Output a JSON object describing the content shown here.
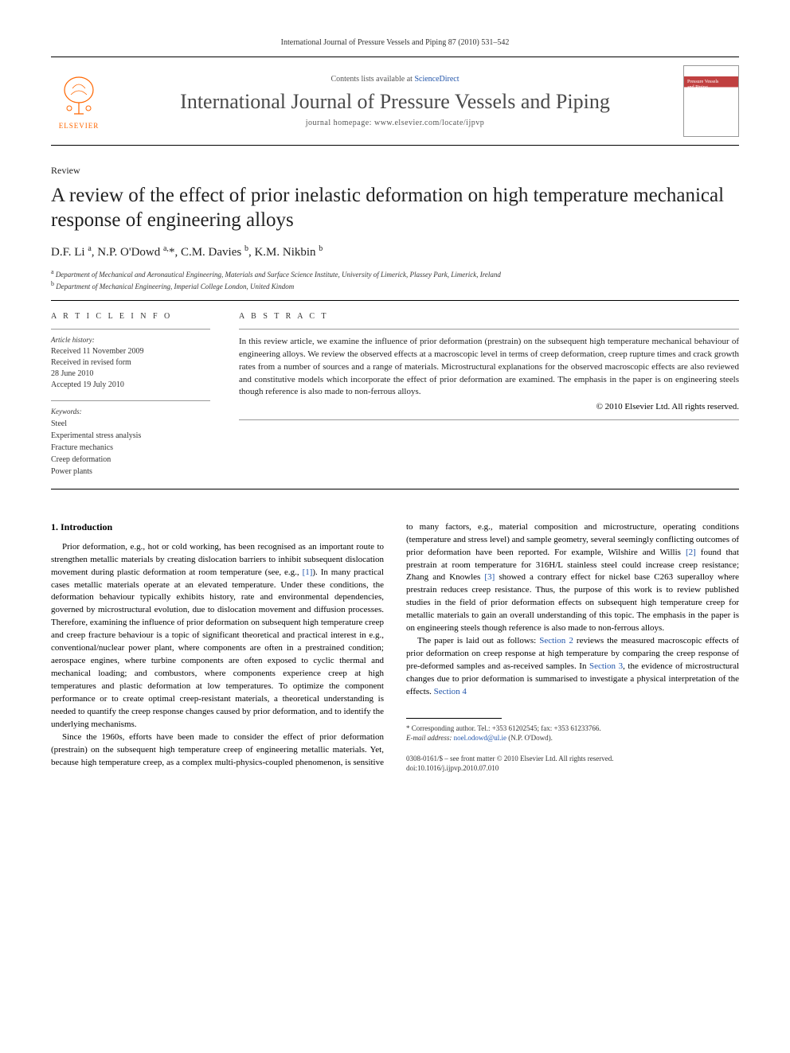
{
  "header": {
    "citation": "International Journal of Pressure Vessels and Piping 87 (2010) 531–542",
    "contents_prefix": "Contents lists available at ",
    "contents_link": "ScienceDirect",
    "journal_name": "International Journal of Pressure Vessels and Piping",
    "homepage_prefix": "journal homepage: ",
    "homepage_url": "www.elsevier.com/locate/ijpvp",
    "publisher": "ELSEVIER"
  },
  "article": {
    "type": "Review",
    "title": "A review of the effect of prior inelastic deformation on high temperature mechanical response of engineering alloys",
    "authors_html": "D.F. Li <sup>a</sup>, N.P. O'Dowd <sup>a,</sup>*, C.M. Davies <sup>b</sup>, K.M. Nikbin <sup>b</sup>",
    "affiliations": [
      {
        "sup": "a",
        "text": "Department of Mechanical and Aeronautical Engineering, Materials and Surface Science Institute, University of Limerick, Plassey Park, Limerick, Ireland"
      },
      {
        "sup": "b",
        "text": "Department of Mechanical Engineering, Imperial College London, United Kindom"
      }
    ]
  },
  "info": {
    "heading": "A R T I C L E   I N F O",
    "history_label": "Article history:",
    "history": "Received 11 November 2009\nReceived in revised form\n28 June 2010\nAccepted 19 July 2010",
    "keywords_label": "Keywords:",
    "keywords": [
      "Steel",
      "Experimental stress analysis",
      "Fracture mechanics",
      "Creep deformation",
      "Power plants"
    ]
  },
  "abstract": {
    "heading": "A B S T R A C T",
    "text": "In this review article, we examine the influence of prior deformation (prestrain) on the subsequent high temperature mechanical behaviour of engineering alloys. We review the observed effects at a macroscopic level in terms of creep deformation, creep rupture times and crack growth rates from a number of sources and a range of materials. Microstructural explanations for the observed macroscopic effects are also reviewed and constitutive models which incorporate the effect of prior deformation are examined. The emphasis in the paper is on engineering steels though reference is also made to non-ferrous alloys.",
    "copyright": "© 2010 Elsevier Ltd. All rights reserved."
  },
  "body": {
    "section_number": "1.",
    "section_title": "Introduction",
    "p1": "Prior deformation, e.g., hot or cold working, has been recognised as an important route to strengthen metallic materials by creating dislocation barriers to inhibit subsequent dislocation movement during plastic deformation at room temperature (see, e.g., [1]). In many practical cases metallic materials operate at an elevated temperature. Under these conditions, the deformation behaviour typically exhibits history, rate and environmental dependencies, governed by microstructural evolution, due to dislocation movement and diffusion processes. Therefore, examining the influence of prior deformation on subsequent high temperature creep and creep fracture behaviour is a topic of significant theoretical and practical interest in e.g., conventional/nuclear power plant, where components are often in a prestrained condition; aerospace engines, where turbine components are often exposed to cyclic thermal and mechanical loading; and combustors, where components experience creep at high temperatures and plastic deformation at low temperatures. To optimize the component performance or to create optimal creep-resistant materials, a theoretical understanding is needed to quantify the creep response changes caused by prior deformation, and to identify the underlying mechanisms.",
    "p2": "Since the 1960s, efforts have been made to consider the effect of prior deformation (prestrain) on the subsequent high temperature creep of engineering metallic materials. Yet, because high temperature creep, as a complex multi-physics-coupled phenomenon, is sensitive to many factors, e.g., material composition and microstructure, operating conditions (temperature and stress level) and sample geometry, several seemingly conflicting outcomes of prior deformation have been reported. For example, Wilshire and Willis [2] found that prestrain at room temperature for 316H/L stainless steel could increase creep resistance; Zhang and Knowles [3] showed a contrary effect for nickel base C263 superalloy where prestrain reduces creep resistance. Thus, the purpose of this work is to review published studies in the field of prior deformation effects on subsequent high temperature creep for metallic materials to gain an overall understanding of this topic. The emphasis in the paper is on engineering steels though reference is also made to non-ferrous alloys.",
    "p3": "The paper is laid out as follows: Section 2 reviews the measured macroscopic effects of prior deformation on creep response at high temperature by comparing the creep response of pre-deformed samples and as-received samples. In Section 3, the evidence of microstructural changes due to prior deformation is summarised to investigate a physical interpretation of the effects. Section 4"
  },
  "footer": {
    "corr_label": "* Corresponding author. Tel.: ",
    "tel": "+353 61202545",
    "fax_label": "; fax: ",
    "fax": "+353 61233766.",
    "email_label": "E-mail address: ",
    "email": "noel.odowd@ul.ie",
    "email_name": " (N.P. O'Dowd).",
    "issn_line": "0308-0161/$ – see front matter © 2010 Elsevier Ltd. All rights reserved.",
    "doi": "doi:10.1016/j.ijpvp.2010.07.010"
  },
  "colors": {
    "link": "#2255aa",
    "elsevier_orange": "#ff6600",
    "text": "#222222"
  }
}
